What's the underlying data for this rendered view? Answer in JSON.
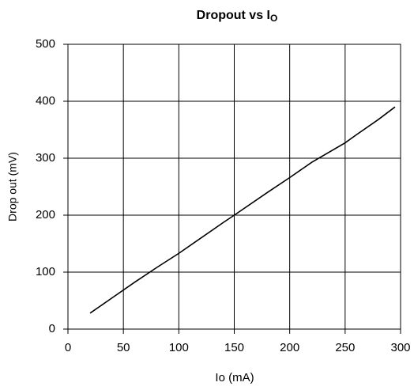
{
  "chart_data": {
    "type": "line",
    "title": "Dropout vs  I",
    "title_subscript": "O",
    "x_label": "Io (mA)",
    "y_label": "Drop out (mV)",
    "x": [
      20,
      40,
      60,
      80,
      100,
      120,
      140,
      150,
      180,
      200,
      220,
      250,
      260,
      280,
      295
    ],
    "series": [
      {
        "color": "#000000",
        "values": [
          28,
          55,
          82,
          108,
          133,
          160,
          187,
          200,
          240,
          266,
          293,
          327,
          341,
          368,
          390
        ]
      }
    ],
    "xlim": [
      0,
      300
    ],
    "xticks": [
      0,
      50,
      100,
      150,
      200,
      250,
      300
    ],
    "ylim": [
      0,
      500
    ],
    "yticks": [
      0,
      100,
      200,
      300,
      400,
      500
    ],
    "grid": true
  }
}
